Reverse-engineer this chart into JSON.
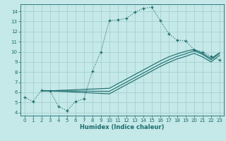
{
  "xlabel": "Humidex (Indice chaleur)",
  "bg_color": "#c5e8e8",
  "line_color": "#1a6b6b",
  "grid_color": "#a0cccc",
  "xlim": [
    -0.5,
    23.5
  ],
  "ylim": [
    3.7,
    14.7
  ],
  "yticks": [
    4,
    5,
    6,
    7,
    8,
    9,
    10,
    11,
    12,
    13,
    14
  ],
  "xticks": [
    0,
    1,
    2,
    3,
    4,
    5,
    6,
    7,
    8,
    9,
    10,
    11,
    12,
    13,
    14,
    15,
    16,
    17,
    18,
    19,
    20,
    21,
    22,
    23
  ],
  "main_x": [
    0,
    1,
    2,
    3,
    4,
    5,
    6,
    7,
    8,
    9,
    10,
    11,
    12,
    13,
    14,
    15,
    16,
    17,
    18,
    19,
    20,
    21,
    22,
    23
  ],
  "main_y": [
    5.5,
    5.1,
    6.2,
    6.15,
    4.6,
    4.2,
    5.1,
    5.35,
    8.1,
    10.0,
    13.1,
    13.15,
    13.3,
    13.9,
    14.3,
    14.4,
    13.1,
    11.8,
    11.15,
    11.1,
    10.2,
    10.0,
    9.55,
    9.2
  ],
  "diag1_x": [
    2,
    3,
    10,
    11,
    12,
    13,
    14,
    15,
    16,
    17,
    18,
    19,
    20,
    21,
    22,
    23
  ],
  "diag1_y": [
    6.15,
    6.15,
    6.4,
    6.85,
    7.3,
    7.75,
    8.2,
    8.65,
    9.1,
    9.5,
    9.8,
    10.05,
    10.25,
    9.85,
    9.35,
    9.9
  ],
  "diag2_x": [
    2,
    3,
    10,
    11,
    12,
    13,
    14,
    15,
    16,
    17,
    18,
    19,
    20,
    21,
    22,
    23
  ],
  "diag2_y": [
    6.15,
    6.15,
    6.1,
    6.55,
    7.0,
    7.45,
    7.9,
    8.35,
    8.8,
    9.2,
    9.55,
    9.8,
    10.1,
    9.75,
    9.2,
    9.85
  ],
  "diag3_x": [
    2,
    3,
    10,
    11,
    12,
    13,
    14,
    15,
    16,
    17,
    18,
    19,
    20,
    21,
    22,
    23
  ],
  "diag3_y": [
    6.15,
    6.15,
    5.85,
    6.3,
    6.75,
    7.2,
    7.65,
    8.1,
    8.55,
    8.95,
    9.3,
    9.55,
    9.85,
    9.5,
    9.0,
    9.65
  ]
}
